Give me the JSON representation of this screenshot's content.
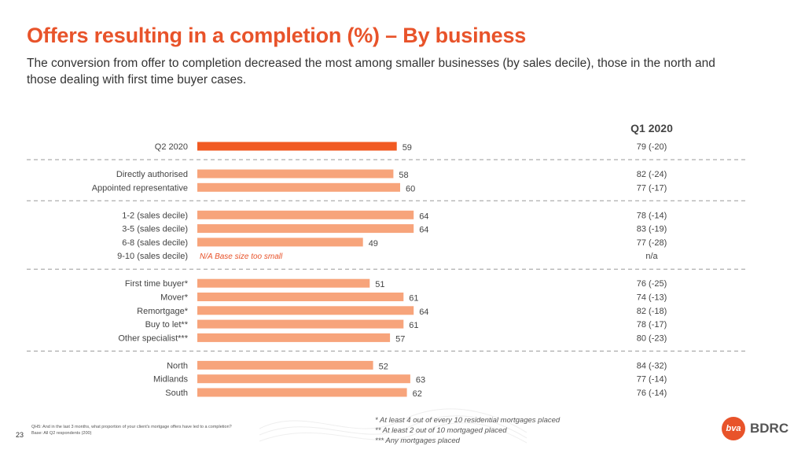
{
  "header": {
    "title": "Offers resulting in a completion (%) – By business",
    "subtitle": "The conversion from offer to completion decreased the most among smaller businesses (by sales decile), those in the north and those dealing with first time buyer cases."
  },
  "chart_data": {
    "type": "bar",
    "orientation": "horizontal",
    "column_header": "Q1 2020",
    "groups": [
      {
        "rows": [
          {
            "label": "Q2 2020",
            "value": 59,
            "highlight": true,
            "q1": "79 (-20)"
          }
        ]
      },
      {
        "rows": [
          {
            "label": "Directly authorised",
            "value": 58,
            "q1": "82 (-24)"
          },
          {
            "label": "Appointed representative",
            "value": 60,
            "q1": "77 (-17)"
          }
        ]
      },
      {
        "rows": [
          {
            "label": "1-2 (sales decile)",
            "value": 64,
            "q1": "78 (-14)"
          },
          {
            "label": "3-5 (sales decile)",
            "value": 64,
            "q1": "83 (-19)"
          },
          {
            "label": "6-8 (sales decile)",
            "value": 49,
            "q1": "77 (-28)"
          },
          {
            "label": "9-10 (sales decile)",
            "value": null,
            "note": "N/A Base size too small",
            "q1": "n/a"
          }
        ]
      },
      {
        "rows": [
          {
            "label": "First time buyer*",
            "value": 51,
            "q1": "76 (-25)"
          },
          {
            "label": "Mover*",
            "value": 61,
            "q1": "74 (-13)"
          },
          {
            "label": "Remortgage*",
            "value": 64,
            "q1": "82 (-18)"
          },
          {
            "label": "Buy to let**",
            "value": 61,
            "q1": "78 (-17)"
          },
          {
            "label": "Other specialist***",
            "value": 57,
            "q1": "80 (-23)"
          }
        ]
      },
      {
        "rows": [
          {
            "label": "North",
            "value": 52,
            "q1": "84 (-32)"
          },
          {
            "label": "Midlands",
            "value": 63,
            "q1": "77 (-14)"
          },
          {
            "label": "South",
            "value": 62,
            "q1": "76 (-14)"
          }
        ]
      }
    ],
    "xlim": [
      0,
      100
    ],
    "colors": {
      "highlight": "#f15a22",
      "bar": "#f7a47b",
      "note": "#e8532a",
      "divider": "#9a9a9a"
    }
  },
  "footer": {
    "question": "QH5: And in the last 3 months, what proportion of your client's mortgage offers have led to a completion?",
    "base": "Base: All Q2 respondents (200)",
    "page_number": "23",
    "notes": [
      "* At least 4 out of every 10 residential mortgages placed",
      "** At least 2 out of 10 mortgaged placed",
      "*** Any mortgages placed"
    ],
    "logo_mark": "bva",
    "logo_text": "BDRC"
  }
}
